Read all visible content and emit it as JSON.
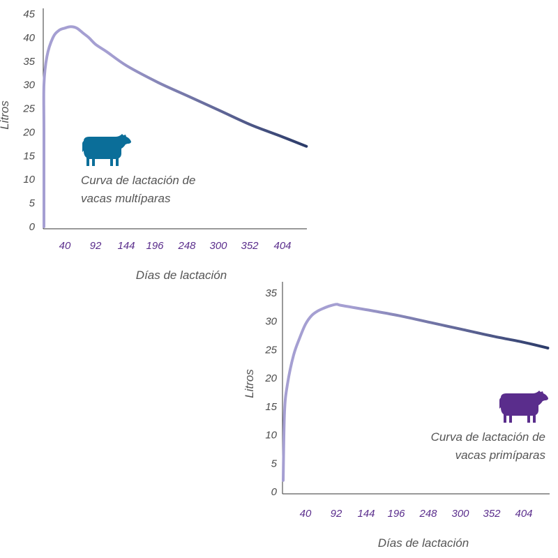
{
  "chart_data": [
    {
      "type": "line",
      "xlabel": "Días de lactación",
      "ylabel": "Litros",
      "ylim": [
        0,
        45
      ],
      "yticks": [
        "0",
        "5",
        "10",
        "15",
        "20",
        "25",
        "30",
        "35",
        "40",
        "45"
      ],
      "xticks": [
        "40",
        "92",
        "144",
        "196",
        "248",
        "300",
        "352",
        "404"
      ],
      "annotation": [
        "Curva de lactación de",
        "vacas multíparas"
      ],
      "cow_color": "#0b6e99",
      "line_color_start": "#a59fd2",
      "line_color_end": "#2a3a68",
      "series": [
        {
          "x": [
            0,
            2,
            5,
            10,
            20,
            30,
            40,
            50,
            60,
            70,
            80,
            92,
            110,
            144,
            196,
            248,
            300,
            352,
            404,
            444
          ],
          "y": [
            0,
            20,
            30,
            36,
            40,
            41.5,
            42,
            42.3,
            42,
            41,
            40,
            38.5,
            37,
            34,
            30.5,
            27.5,
            24.5,
            21.5,
            19,
            17
          ]
        }
      ]
    },
    {
      "type": "line",
      "xlabel": "Días de lactación",
      "ylabel": "Litros",
      "ylim": [
        0,
        35
      ],
      "yticks": [
        "0",
        "5",
        "10",
        "15",
        "20",
        "25",
        "30",
        "35"
      ],
      "xticks": [
        "40",
        "92",
        "144",
        "196",
        "248",
        "300",
        "352",
        "404"
      ],
      "annotation": [
        "Curva de lactación de",
        "vacas primíparas"
      ],
      "cow_color": "#5a2d8c",
      "line_color_start": "#a59fd2",
      "line_color_end": "#2a3a68",
      "series": [
        {
          "x": [
            0,
            5,
            10,
            20,
            30,
            40,
            50,
            60,
            70,
            80,
            92,
            100,
            144,
            196,
            248,
            300,
            352,
            404,
            444
          ],
          "y": [
            2,
            14,
            19,
            24,
            27,
            29.5,
            31,
            31.8,
            32.3,
            32.7,
            33,
            32.8,
            32,
            31,
            29.8,
            28.6,
            27.4,
            26.3,
            25.3
          ]
        }
      ]
    }
  ]
}
